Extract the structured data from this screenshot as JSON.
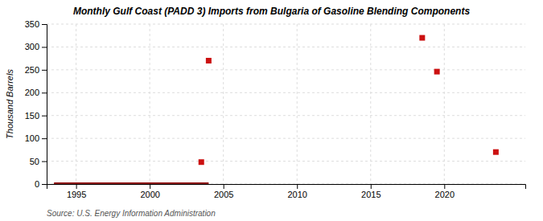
{
  "chart_data": {
    "type": "scatter",
    "title": "Monthly Gulf Coast (PADD 3) Imports from Bulgaria of Gasoline Blending Components",
    "ylabel": "Thousand Barrels",
    "annotations": [
      "Source: U.S. Energy Information Administration"
    ],
    "xlim": [
      1993.0,
      2025.5
    ],
    "ylim": [
      0,
      350
    ],
    "xticks": [
      1995,
      2000,
      2005,
      2010,
      2015,
      2020
    ],
    "yticks": [
      0,
      50,
      100,
      150,
      200,
      250,
      300,
      350
    ],
    "grid": true,
    "series": [
      {
        "type": "line",
        "color": "#8b0000",
        "x": [
          1993.5,
          2004.0
        ],
        "values": [
          0,
          0
        ]
      },
      {
        "type": "scatter",
        "color": "#cc1111",
        "marker": "square",
        "x": [
          2003.5,
          2004.0,
          2018.5,
          2019.5,
          2023.5
        ],
        "values": [
          48,
          270,
          320,
          246,
          70
        ]
      }
    ]
  }
}
